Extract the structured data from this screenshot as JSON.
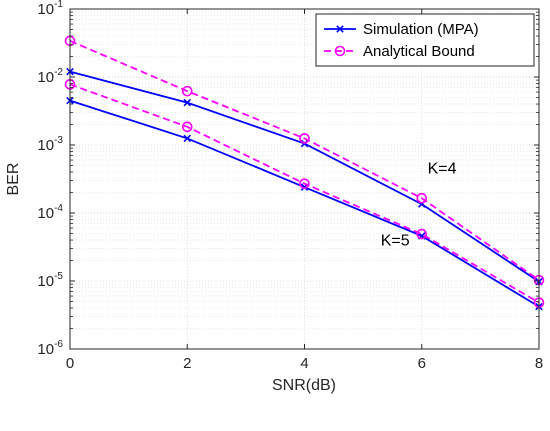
{
  "chart_data": {
    "type": "line",
    "title": "",
    "xlabel": "SNR(dB)",
    "ylabel": "BER",
    "x_ticks": [
      0,
      2,
      4,
      6,
      8
    ],
    "xlim": [
      0,
      8
    ],
    "ylim": [
      1e-06,
      0.1
    ],
    "y_scale": "log",
    "y_ticks": [
      {
        "base": "10",
        "exp": "-6",
        "value": 1e-06
      },
      {
        "base": "10",
        "exp": "-5",
        "value": 1e-05
      },
      {
        "base": "10",
        "exp": "-4",
        "value": 0.0001
      },
      {
        "base": "10",
        "exp": "-3",
        "value": 0.001
      },
      {
        "base": "10",
        "exp": "-2",
        "value": 0.01
      },
      {
        "base": "10",
        "exp": "-1",
        "value": 0.1
      }
    ],
    "grid": true,
    "legend_position": "top-right",
    "legend": [
      {
        "label": "Simulation (MPA)",
        "color": "#0000ff",
        "style": "solid",
        "marker": "x"
      },
      {
        "label": "Analytical Bound",
        "color": "#ff00ff",
        "style": "dashed",
        "marker": "o"
      }
    ],
    "series": [
      {
        "group": "K=4",
        "kind": "simulation",
        "color": "#0000ff",
        "x": [
          0,
          2,
          4,
          6,
          8
        ],
        "y": [
          0.012,
          0.0042,
          0.00105,
          0.000135,
          9.8e-06
        ]
      },
      {
        "group": "K=4",
        "kind": "bound",
        "color": "#ff00ff",
        "x": [
          0,
          2,
          4,
          6,
          8
        ],
        "y": [
          0.034,
          0.0062,
          0.00125,
          0.000165,
          1.03e-05
        ]
      },
      {
        "group": "K=5",
        "kind": "simulation",
        "color": "#0000ff",
        "x": [
          0,
          2,
          4,
          6,
          8
        ],
        "y": [
          0.0045,
          0.00125,
          0.00024,
          4.6e-05,
          4.2e-06
        ]
      },
      {
        "group": "K=5",
        "kind": "bound",
        "color": "#ff00ff",
        "x": [
          0,
          2,
          4,
          6,
          8
        ],
        "y": [
          0.0078,
          0.00185,
          0.00027,
          4.9e-05,
          4.8e-06
        ]
      }
    ],
    "annotations": [
      {
        "text": "K=4",
        "x": 6.1,
        "y": 0.00038
      },
      {
        "text": "K=5",
        "x": 5.3,
        "y": 3.3e-05
      }
    ]
  }
}
